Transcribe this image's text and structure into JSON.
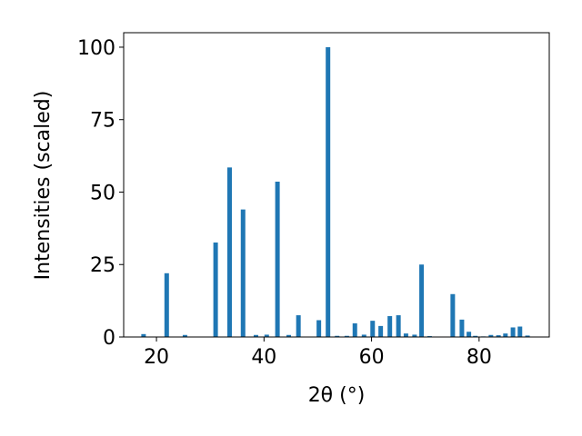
{
  "chart_data": {
    "type": "bar",
    "xlabel": "2θ (°)",
    "ylabel": "Intensities (scaled)",
    "x": [
      17.6,
      21.9,
      25.3,
      31.0,
      33.6,
      36.1,
      38.5,
      40.5,
      42.5,
      44.6,
      46.4,
      50.2,
      51.9,
      53.6,
      55.4,
      56.9,
      58.6,
      60.2,
      61.7,
      63.4,
      65.0,
      66.4,
      68.0,
      69.3,
      70.8,
      75.1,
      76.8,
      78.1,
      79.3,
      80.8,
      82.2,
      83.6,
      84.9,
      86.3,
      87.6,
      89.0
    ],
    "values": [
      1,
      22,
      0.7,
      32.6,
      58.5,
      44,
      0.7,
      0.8,
      53.6,
      0.7,
      7.5,
      5.8,
      100,
      0.4,
      0.4,
      4.7,
      0.8,
      5.6,
      3.8,
      7.2,
      7.5,
      1.2,
      0.8,
      25,
      0.3,
      14.8,
      6.0,
      1.8,
      0.4,
      0.2,
      0.7,
      0.6,
      1.2,
      3.3,
      3.6,
      0.5
    ],
    "color": "#1f77b4",
    "xlim": [
      13.9,
      93.05
    ],
    "xticks": [
      20,
      40,
      60,
      80
    ],
    "ylim": [
      0,
      105
    ],
    "yticks": [
      0,
      25,
      50,
      75,
      100
    ],
    "grid": false
  }
}
